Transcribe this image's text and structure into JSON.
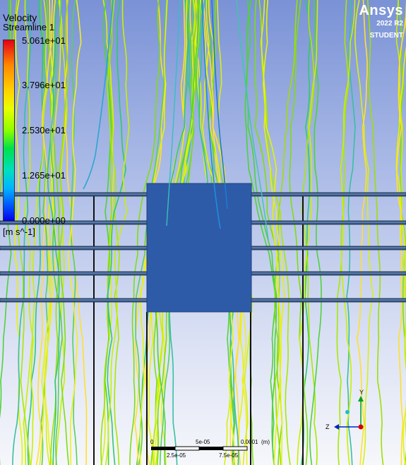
{
  "legend": {
    "title": "Velocity",
    "subtitle": "Streamline 1",
    "ticks": [
      "5.061e+01",
      "3.796e+01",
      "2.530e+01",
      "1.265e+01",
      "0.000e+00"
    ],
    "units": "[m s^-1]"
  },
  "brand": {
    "name": "Ansys",
    "version": "2022 R2",
    "edition": "STUDENT"
  },
  "scale_bar": {
    "top_labels": [
      "0",
      "5e-05",
      "0.0001",
      "(m)"
    ],
    "bottom_labels": [
      "2.5e-05",
      "7.5e-05"
    ]
  },
  "axis_triad": {
    "horizontal_label": "Z",
    "vertical_label": "Y"
  },
  "colors": {
    "block": "#2e5ba8",
    "background_top": "#7a92d6",
    "background_bottom": "#f6f7fb"
  }
}
